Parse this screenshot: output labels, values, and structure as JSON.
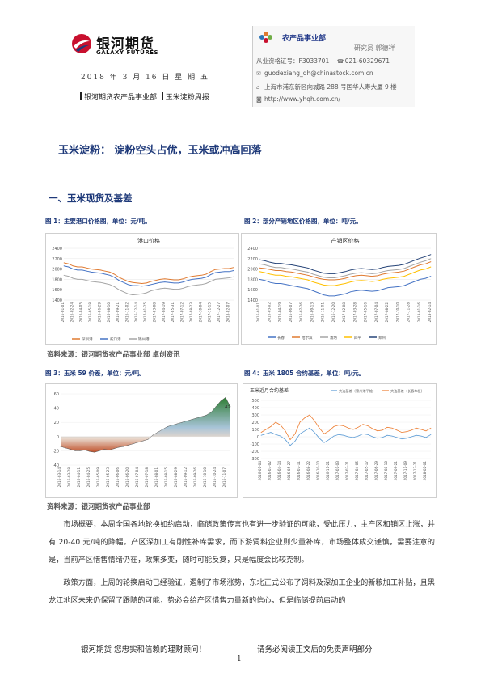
{
  "header": {
    "logo_cn": "银河期货",
    "logo_en": "GALAXY FUTURES",
    "date": "2018 年 3 月 16 日 星 期 五",
    "dept_line": "银河期货农产品事业部",
    "report_name": "玉米淀粉周报",
    "brand_color": "#c8102e"
  },
  "contact": {
    "dept": "农产品事业部",
    "person": "研究员 郭德祥",
    "license": "从业资格证号：F3033701",
    "phone": "021-60329671",
    "email": "guodexiang_qh@chinastock.com.cn",
    "address": "上海市浦东新区向城路 288 号国华人寿大厦 9 楼",
    "website": "http://www.yhqh.com.cn/"
  },
  "title": "玉米淀粉： 淀粉空头占优，玉米或冲高回落",
  "section1": "一、玉米现货及基差",
  "figures": {
    "fig1_caption": "图 1：主要港口价格图，单位：元/吨。",
    "fig2_caption": "图 2：部分产销地区价格图，单位：吨/元。",
    "fig3_caption": "图 3：玉米 59 价差，单位：元/吨。",
    "fig4_caption": "图 4：玉米 1805 合约基差，单位：吨/元。",
    "source1": "资料来源：银河期货农产品事业部 卓创资讯",
    "source2": "资料来源：银河期货农产品事业部"
  },
  "chart_data": [
    {
      "type": "line",
      "title": "港口价格",
      "ylim": [
        1400,
        2400
      ],
      "yticks": [
        1400,
        1600,
        1800,
        2000,
        2200,
        2400
      ],
      "x": [
        "2016-01-01",
        "2016-01-22",
        "2016-02-24",
        "2016-03-15",
        "2016-04-05",
        "2016-04-26",
        "2016-05-18",
        "2016-06-08",
        "2016-06-29",
        "2016-07-20",
        "2016-08-10",
        "2016-08-31",
        "2016-09-21",
        "2016-10-12",
        "2016-11-02",
        "2016-11-23",
        "2016-12-14",
        "2017-01-04",
        "2017-01-25",
        "2017-02-15",
        "2017-03-08",
        "2017-03-29",
        "2017-04-19",
        "2017-05-10",
        "2017-05-31",
        "2017-06-21",
        "2017-07-12",
        "2017-08-02",
        "2017-08-23",
        "2017-09-13",
        "2017-10-04",
        "2017-10-25",
        "2017-11-15",
        "2017-12-06",
        "2017-12-27",
        "2018-01-17",
        "2018-02-07",
        "2018-02-28"
      ],
      "series": [
        {
          "name": "深圳港",
          "color": "#e07a30",
          "values": [
            2120,
            2100,
            2060,
            2040,
            2040,
            2020,
            2000,
            1990,
            1980,
            1960,
            1940,
            1900,
            1840,
            1800,
            1760,
            1740,
            1730,
            1720,
            1730,
            1760,
            1780,
            1800,
            1810,
            1800,
            1790,
            1790,
            1810,
            1840,
            1860,
            1870,
            1880,
            1900,
            1950,
            1990,
            2000,
            2010,
            2010,
            2030
          ]
        },
        {
          "name": "蛇口港",
          "color": "#4472c4",
          "values": [
            2060,
            2040,
            2000,
            1980,
            1980,
            1960,
            1940,
            1930,
            1920,
            1900,
            1880,
            1840,
            1780,
            1740,
            1700,
            1680,
            1680,
            1670,
            1680,
            1700,
            1720,
            1740,
            1750,
            1740,
            1730,
            1730,
            1750,
            1780,
            1800,
            1810,
            1820,
            1840,
            1890,
            1930,
            1940,
            1950,
            1950,
            1970
          ]
        },
        {
          "name": "锦州港",
          "color": "#a5a5a5",
          "values": [
            1880,
            1860,
            1820,
            1800,
            1800,
            1780,
            1760,
            1750,
            1740,
            1720,
            1700,
            1660,
            1600,
            1560,
            1520,
            1500,
            1510,
            1520,
            1540,
            1580,
            1600,
            1620,
            1630,
            1620,
            1610,
            1610,
            1630,
            1660,
            1680,
            1690,
            1700,
            1720,
            1760,
            1800,
            1810,
            1820,
            1830,
            1850
          ]
        }
      ]
    },
    {
      "type": "line",
      "title": "产销区价格",
      "ylim": [
        1400,
        2400
      ],
      "yticks": [
        1400,
        1600,
        1800,
        2000,
        2200,
        2400
      ],
      "x": [
        "2016-01-01",
        "2016-01-26",
        "2016-03-02",
        "2016-03-25",
        "2016-04-19",
        "2016-05-13",
        "2016-06-07",
        "2016-07-01",
        "2016-07-26",
        "2016-08-19",
        "2016-09-13",
        "2016-10-07",
        "2016-11-01",
        "2016-11-25",
        "2016-12-20",
        "2017-01-13",
        "2017-02-08",
        "2017-03-03",
        "2017-03-28",
        "2017-04-21",
        "2017-05-16",
        "2017-06-09",
        "2017-07-04",
        "2017-07-28",
        "2017-08-22",
        "2017-09-15",
        "2017-10-10",
        "2017-11-03",
        "2017-11-28",
        "2017-12-22",
        "2018-01-16",
        "2018-02-09",
        "2018-02-14"
      ],
      "series": [
        {
          "name": "长春",
          "color": "#4472c4",
          "values": [
            1800,
            1780,
            1740,
            1720,
            1720,
            1700,
            1680,
            1660,
            1640,
            1620,
            1580,
            1540,
            1500,
            1480,
            1480,
            1500,
            1520,
            1560,
            1580,
            1590,
            1580,
            1570,
            1580,
            1610,
            1640,
            1650,
            1660,
            1680,
            1720,
            1760,
            1800,
            1820,
            1860
          ]
        },
        {
          "name": "哈尔滨",
          "color": "#e07a30",
          "values": [
            2020,
            2010,
            1990,
            1970,
            1970,
            1950,
            1940,
            1920,
            1900,
            1880,
            1850,
            1820,
            1800,
            1790,
            1790,
            1800,
            1820,
            1850,
            1870,
            1880,
            1870,
            1860,
            1870,
            1900,
            1920,
            1930,
            1940,
            1960,
            2000,
            2040,
            2080,
            2100,
            2140
          ]
        },
        {
          "name": "潍坊",
          "color": "#a5a5a5",
          "values": [
            2100,
            2080,
            2050,
            2030,
            2030,
            2010,
            2000,
            1980,
            1960,
            1940,
            1900,
            1870,
            1840,
            1830,
            1830,
            1850,
            1870,
            1900,
            1920,
            1930,
            1920,
            1910,
            1920,
            1950,
            1970,
            1980,
            1990,
            2010,
            2050,
            2090,
            2130,
            2160,
            2200
          ]
        },
        {
          "name": "四平",
          "color": "#ffc000",
          "values": [
            1950,
            1930,
            1900,
            1880,
            1880,
            1860,
            1850,
            1830,
            1810,
            1790,
            1750,
            1720,
            1690,
            1680,
            1680,
            1700,
            1720,
            1750,
            1770,
            1780,
            1770,
            1760,
            1770,
            1800,
            1820,
            1830,
            1840,
            1860,
            1900,
            1940,
            1980,
            2000,
            2040
          ]
        },
        {
          "name": "郑州",
          "color": "#264478",
          "values": [
            2180,
            2160,
            2130,
            2110,
            2110,
            2090,
            2080,
            2060,
            2040,
            2020,
            1980,
            1950,
            1920,
            1910,
            1910,
            1930,
            1950,
            1980,
            2000,
            2010,
            2000,
            1990,
            2000,
            2030,
            2050,
            2060,
            2070,
            2090,
            2130,
            2170,
            2210,
            2240,
            2280
          ]
        }
      ]
    },
    {
      "type": "area",
      "ylim": [
        -40,
        60
      ],
      "yticks": [
        -40,
        -20,
        0,
        20,
        40,
        60
      ],
      "last_label": "42",
      "x": [
        "2016-03-14",
        "2016-03-21",
        "2016-03-28",
        "2016-04-04",
        "2016-04-11",
        "2016-04-18",
        "2016-04-25",
        "2016-05-02",
        "2016-05-09",
        "2016-05-16",
        "2016-05-23",
        "2016-05-30",
        "2016-06-06",
        "2016-06-13",
        "2016-06-20",
        "2016-06-27",
        "2016-07-04",
        "2016-07-11",
        "2016-07-18",
        "2016-07-25",
        "2016-08-01",
        "2016-08-08",
        "2016-08-15",
        "2016-08-22",
        "2016-08-29",
        "2016-09-05",
        "2016-09-12",
        "2016-09-19",
        "2016-09-26",
        "2016-10-03",
        "2016-10-10",
        "2016-10-17",
        "2016-10-24",
        "2016-10-31",
        "2016-11-07",
        "2016-11-14"
      ],
      "values": [
        -14,
        -16,
        -18,
        -20,
        -20,
        -19,
        -21,
        -22,
        -20,
        -18,
        -19,
        -17,
        -15,
        -14,
        -12,
        -10,
        -8,
        -6,
        -4,
        2,
        6,
        10,
        14,
        16,
        18,
        20,
        22,
        24,
        26,
        28,
        30,
        34,
        42,
        50,
        55,
        42
      ]
    },
    {
      "type": "line",
      "title": "玉米近月合约基差",
      "ylim": [
        -300,
        500
      ],
      "yticks": [
        -300,
        -200,
        -100,
        0,
        100,
        200,
        300,
        400,
        500
      ],
      "x": [
        "2016-01-04",
        "2016-01-25",
        "2016-03-02",
        "2016-03-23",
        "2016-04-14",
        "2016-05-06",
        "2016-05-27",
        "2016-06-20",
        "2016-07-11",
        "2016-08-01",
        "2016-08-22",
        "2016-09-12",
        "2016-10-10",
        "2016-10-31",
        "2016-11-21",
        "2016-12-12",
        "2017-01-03",
        "2017-01-24",
        "2017-02-21",
        "2017-03-14",
        "2017-04-05",
        "2017-04-26",
        "2017-05-17",
        "2017-06-08",
        "2017-06-29",
        "2017-07-20",
        "2017-08-10",
        "2017-08-31",
        "2017-09-21",
        "2017-10-19",
        "2017-11-09",
        "2017-11-30",
        "2017-12-21",
        "2018-01-11",
        "2018-02-01",
        "2018-02-22"
      ],
      "series": [
        {
          "name": "大连基差（锦州港平舱）",
          "color": "#5b9bd5",
          "values": [
            20,
            40,
            60,
            30,
            10,
            -40,
            -120,
            -60,
            40,
            80,
            120,
            60,
            -20,
            -80,
            -40,
            10,
            30,
            20,
            0,
            -10,
            10,
            40,
            30,
            0,
            -20,
            -10,
            20,
            10,
            -10,
            -30,
            -20,
            0,
            20,
            10,
            -10,
            30
          ]
        },
        {
          "name": "大连基差（长春车板）",
          "color": "#ed7d31",
          "values": [
            60,
            100,
            140,
            200,
            160,
            80,
            -40,
            40,
            200,
            260,
            300,
            220,
            120,
            40,
            80,
            140,
            160,
            150,
            120,
            100,
            130,
            170,
            150,
            110,
            80,
            90,
            130,
            120,
            90,
            60,
            70,
            90,
            120,
            100,
            80,
            120
          ]
        }
      ]
    }
  ],
  "body": {
    "p1": "市场概要，本周全国各地轮换如约启动，临储政策传言也有进一步验证的可能，受此压力，主产区和销区止涨，并有 20-40 元/吨的降幅。产区深加工有刚性补库需求，而下游饲料企业则少量补库，市场整体成交谨慎，需要注意的是，当前产区惜售情绪仍在，政策多变，随时可能反复，只是幅度会比较克制。",
    "p2": "政策方面，上周的轮换启动已经验证，遏制了市场涨势，东北正式公布了饲料及深加工企业的新粮加工补贴，且黑龙江地区未来仍保留了跟随的可能，势必会给产区惜售力量新的信心，但是临储提前启动的"
  },
  "footer": {
    "slogan": "银河期货  您忠实和信赖的理财顾问！",
    "disclaimer": "请务必阅读正文后的免责声明部分",
    "page": "1"
  }
}
